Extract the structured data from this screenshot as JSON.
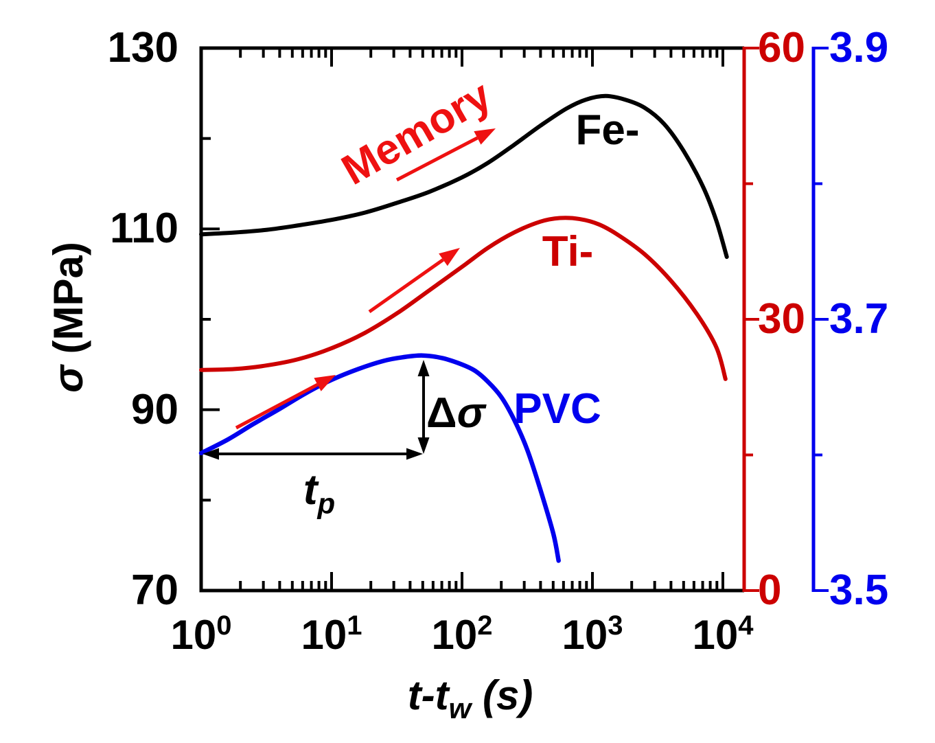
{
  "figure": {
    "background": "#ffffff",
    "colors": {
      "black": "#000000",
      "dark_red": "#CC0000",
      "bright_red": "#EE1111",
      "blue": "#0000EE"
    }
  },
  "chart_data": {
    "type": "line",
    "title": "",
    "x_axis": {
      "label_main": "t-t",
      "label_sub": "w",
      "label_unit": " (s)",
      "scale": "log",
      "range_log10": [
        0,
        4.163
      ],
      "tick_values": [
        1,
        10,
        100,
        1000,
        10000
      ],
      "tick_labels": [
        {
          "base": "10",
          "exp": "0"
        },
        {
          "base": "10",
          "exp": "1"
        },
        {
          "base": "10",
          "exp": "2"
        },
        {
          "base": "10",
          "exp": "3"
        },
        {
          "base": "10",
          "exp": "4"
        }
      ]
    },
    "y_left": {
      "label_sigma": "σ",
      "label_unit": " (MPa)",
      "range": [
        70,
        130
      ],
      "tick_values": [
        130,
        110,
        90,
        70
      ],
      "tick_labels": [
        "130",
        "110",
        "90",
        "70"
      ],
      "minor_tick_values": [
        120,
        100,
        80
      ],
      "color": "#000000"
    },
    "y_right_red": {
      "range": [
        0,
        60
      ],
      "tick_values": [
        60,
        30,
        0
      ],
      "tick_labels": [
        "60",
        "30",
        "0"
      ],
      "minor_tick_values": [
        45,
        15
      ],
      "color": "#CC0000"
    },
    "y_right_blue": {
      "range": [
        3.5,
        3.9
      ],
      "tick_values": [
        3.9,
        3.7,
        3.5
      ],
      "tick_labels": [
        "3.9",
        "3.7",
        "3.5"
      ],
      "minor_tick_values": [
        3.8,
        3.6
      ],
      "color": "#0000EE"
    },
    "series": [
      {
        "name": "Fe-",
        "color": "#000000",
        "stroke_width": 6,
        "points": [
          [
            1,
            109.4
          ],
          [
            1.8,
            109.6
          ],
          [
            3.2,
            109.9
          ],
          [
            5.6,
            110.4
          ],
          [
            10,
            111.0
          ],
          [
            18,
            111.8
          ],
          [
            32,
            112.9
          ],
          [
            56,
            114.1
          ],
          [
            100,
            115.7
          ],
          [
            158,
            117.3
          ],
          [
            251,
            119.3
          ],
          [
            398,
            121.4
          ],
          [
            631,
            123.3
          ],
          [
            891,
            124.3
          ],
          [
            1259,
            124.7
          ],
          [
            1778,
            124.3
          ],
          [
            2512,
            123.4
          ],
          [
            3548,
            121.6
          ],
          [
            5012,
            118.6
          ],
          [
            7079,
            114.6
          ],
          [
            8913,
            110.9
          ],
          [
            10715,
            106.9
          ]
        ]
      },
      {
        "name": "Ti-",
        "color": "#CC0000",
        "stroke_width": 6,
        "points": [
          [
            1,
            94.4
          ],
          [
            1.8,
            94.5
          ],
          [
            3.2,
            94.9
          ],
          [
            5.6,
            95.6
          ],
          [
            10,
            96.8
          ],
          [
            18,
            98.5
          ],
          [
            32,
            100.7
          ],
          [
            56,
            103.2
          ],
          [
            100,
            105.8
          ],
          [
            158,
            107.9
          ],
          [
            251,
            109.6
          ],
          [
            398,
            110.8
          ],
          [
            562,
            111.2
          ],
          [
            794,
            111.1
          ],
          [
            1122,
            110.5
          ],
          [
            1585,
            109.3
          ],
          [
            2512,
            107.2
          ],
          [
            3981,
            104.3
          ],
          [
            6310,
            100.6
          ],
          [
            8913,
            96.9
          ],
          [
            10471,
            93.4
          ]
        ]
      },
      {
        "name": "PVC",
        "color": "#0000EE",
        "stroke_width": 6.5,
        "points": [
          [
            1,
            85.2
          ],
          [
            1.6,
            86.7
          ],
          [
            2.5,
            88.4
          ],
          [
            4,
            90.1
          ],
          [
            6.3,
            91.8
          ],
          [
            10,
            93.3
          ],
          [
            16,
            94.5
          ],
          [
            25,
            95.4
          ],
          [
            35,
            95.8
          ],
          [
            50,
            96.0
          ],
          [
            71,
            95.7
          ],
          [
            100,
            95.0
          ],
          [
            126,
            94.3
          ],
          [
            158,
            93.1
          ],
          [
            200,
            91.4
          ],
          [
            251,
            88.9
          ],
          [
            316,
            85.6
          ],
          [
            398,
            81.2
          ],
          [
            501,
            76.3
          ],
          [
            550,
            73.3
          ]
        ]
      }
    ]
  },
  "annotations": {
    "memory": "Memory",
    "fe_label": "Fe-",
    "ti_label": "Ti-",
    "pvc_label": "PVC",
    "delta_sigma": {
      "delta": "Δ",
      "sigma": "σ"
    },
    "tp": {
      "main": "t",
      "sub": "p"
    }
  }
}
